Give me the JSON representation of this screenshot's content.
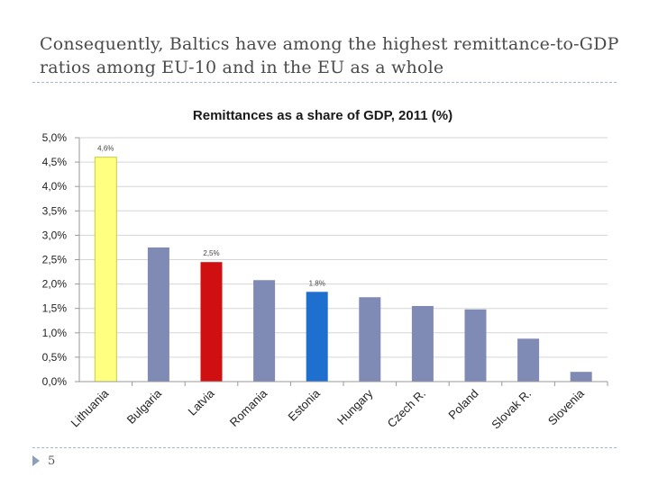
{
  "slide": {
    "title": "Consequently, Baltics have among the highest remittance-to-GDP ratios among EU-10 and in the EU as a whole",
    "page_number": "5"
  },
  "chart_data": {
    "type": "bar",
    "title": "Remittances as a share of GDP, 2011 (%)",
    "xlabel": "",
    "ylabel": "",
    "categories": [
      "Lithuania",
      "Bulgaria",
      "Latvia",
      "Romania",
      "Estonia",
      "Hungary",
      "Czech R.",
      "Poland",
      "Slovak R.",
      "Slovenia"
    ],
    "values": [
      4.6,
      2.75,
      2.45,
      2.08,
      1.84,
      1.73,
      1.55,
      1.48,
      0.88,
      0.2
    ],
    "ylim": [
      0,
      5
    ],
    "yticks": [
      0,
      0.5,
      1.0,
      1.5,
      2.0,
      2.5,
      3.0,
      3.5,
      4.0,
      4.5,
      5.0
    ],
    "ytick_labels": [
      "0,0%",
      "0,5%",
      "1,0%",
      "1,5%",
      "2,0%",
      "2,5%",
      "3,0%",
      "3,5%",
      "4,0%",
      "4,5%",
      "5,0%"
    ],
    "data_labels": [
      {
        "category": "Lithuania",
        "text": "4,6%"
      },
      {
        "category": "Latvia",
        "text": "2,5%"
      },
      {
        "category": "Estonia",
        "text": "1.8%"
      }
    ],
    "grid": true,
    "colors": {
      "default": "#7f8bb5",
      "Lithuania": "#ffff80",
      "Latvia": "#d01010",
      "Estonia": "#1f6fcf",
      "grid": "#d6d6d6",
      "axis": "#9a9a9a"
    }
  }
}
